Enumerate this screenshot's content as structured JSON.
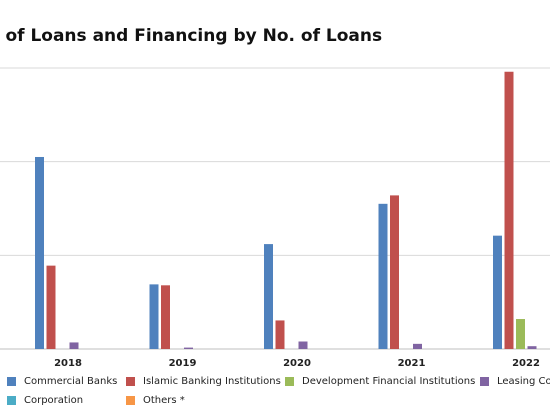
{
  "chart_data": {
    "type": "bar",
    "title": "e of Loans and Financing by No. of Loans",
    "categories": [
      "2018",
      "2019",
      "2020",
      "2021",
      "2022"
    ],
    "ylim": [
      0,
      3000
    ],
    "y_gridlines": [
      0,
      1000,
      2000,
      3000
    ],
    "grid": true,
    "legend_position": "bottom",
    "series": [
      {
        "name": "Commercial Banks",
        "color": "#4f81bd",
        "values": [
          2050,
          690,
          1120,
          1550,
          1210
        ]
      },
      {
        "name": "Islamic Banking Institutions",
        "color": "#c0504d",
        "values": [
          890,
          680,
          305,
          1640,
          2960
        ]
      },
      {
        "name": "Development Financial Institutions",
        "color": "#9bbb59",
        "values": [
          0,
          0,
          0,
          0,
          320
        ]
      },
      {
        "name": "Leasing Co",
        "color": "#8064a2",
        "values": [
          70,
          15,
          80,
          55,
          30
        ]
      },
      {
        "name": "Corporation",
        "color": "#4bacc6",
        "values": [
          0,
          0,
          0,
          0,
          0
        ]
      },
      {
        "name": "Others *",
        "color": "#f79646",
        "values": [
          0,
          0,
          0,
          0,
          0
        ]
      }
    ]
  },
  "legend": {
    "items": [
      "Commercial Banks",
      "Islamic Banking Institutions",
      "Development Financial Institutions",
      "Leasing Co",
      "Corporation",
      "Others *"
    ],
    "leasing_label_visible": "Leasing Co"
  }
}
